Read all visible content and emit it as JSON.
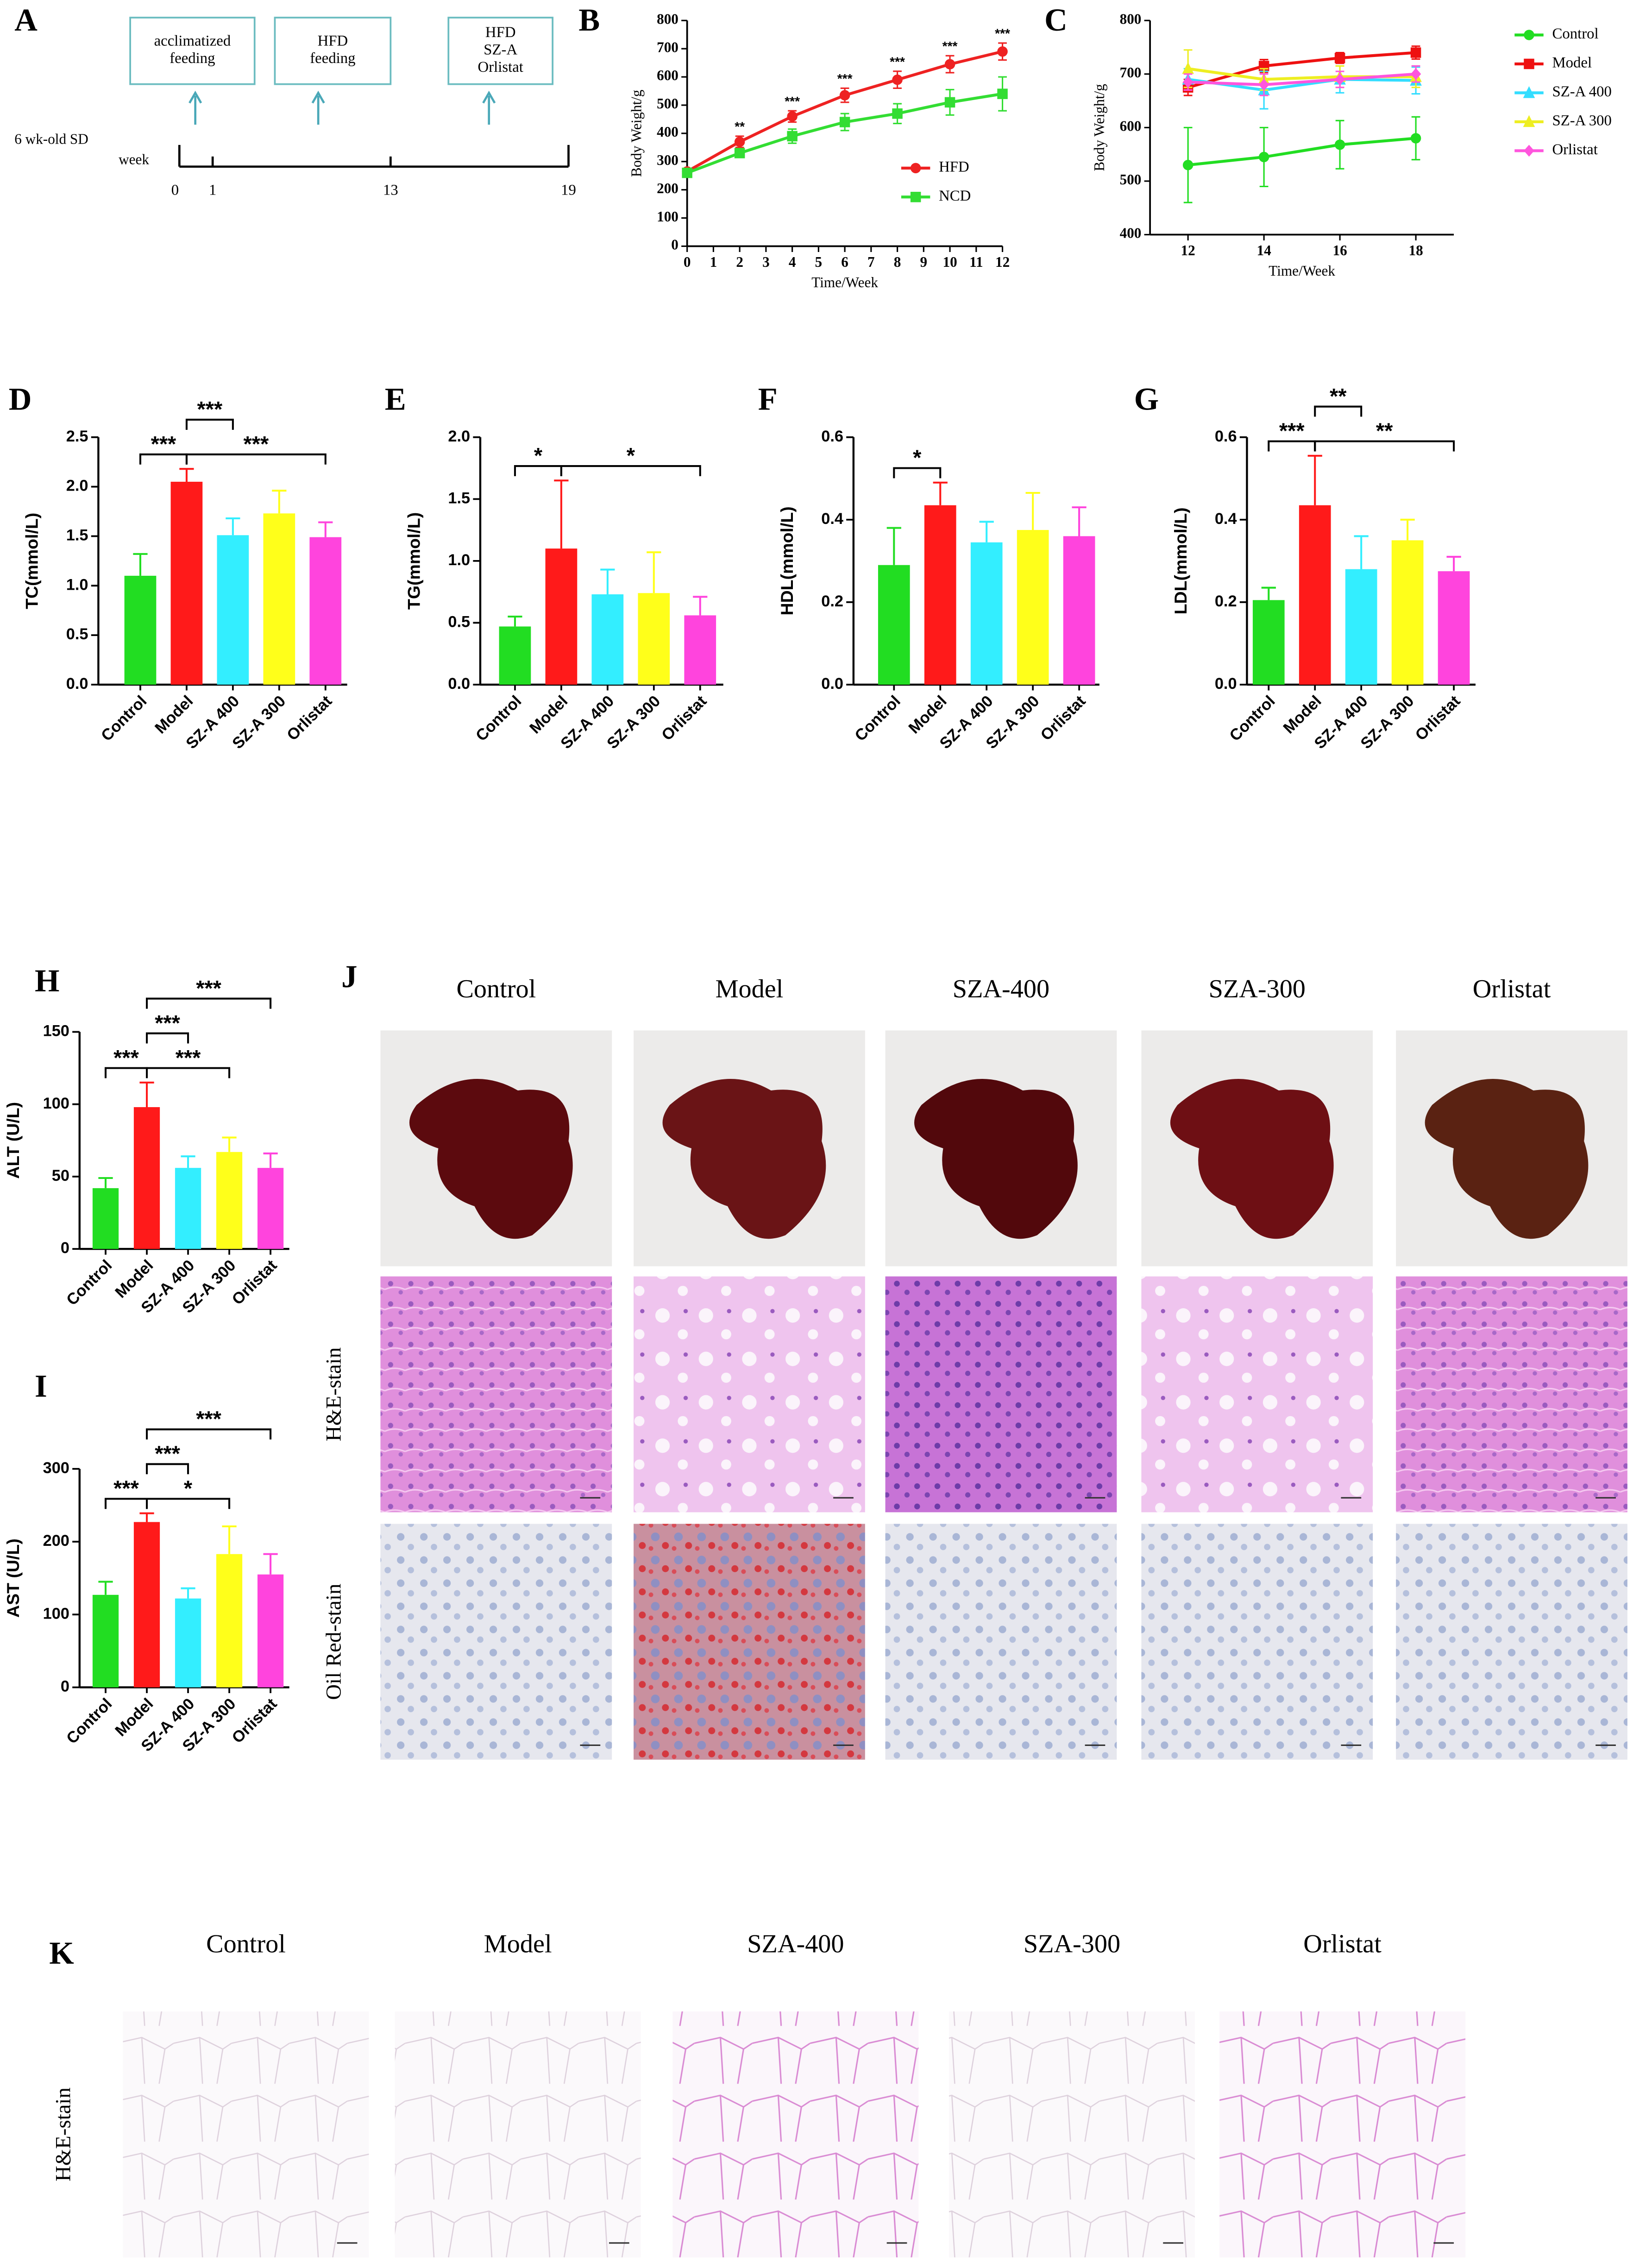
{
  "timeline": {
    "panel": "A",
    "subject": "6 wk-old SD",
    "axis_label": "week",
    "boxes": [
      [
        "acclimatized",
        "feeding"
      ],
      [
        "HFD",
        "feeding"
      ],
      [
        "HFD",
        "SZ-A",
        "Orlistat"
      ]
    ],
    "ticks": [
      0,
      1,
      13,
      19
    ]
  },
  "chart_data": [
    {
      "type": "line",
      "panel": "B",
      "ylabel": "Body Weight/g",
      "xlabel": "Time/Week",
      "x": [
        0,
        2,
        4,
        6,
        8,
        10,
        12
      ],
      "xlim": [
        0,
        12
      ],
      "xticks": [
        0,
        1,
        2,
        3,
        4,
        5,
        6,
        7,
        8,
        9,
        10,
        11,
        12
      ],
      "ylim": [
        0,
        800
      ],
      "yticks": [
        0,
        100,
        200,
        300,
        400,
        500,
        600,
        700,
        800
      ],
      "legend": "lower right",
      "series": [
        {
          "name": "HFD",
          "color": "#ee2222",
          "marker": "circle",
          "values": [
            265,
            370,
            460,
            535,
            590,
            645,
            690
          ],
          "errors": [
            10,
            20,
            20,
            25,
            30,
            30,
            30
          ]
        },
        {
          "name": "NCD",
          "color": "#33dd33",
          "marker": "square",
          "values": [
            260,
            330,
            390,
            440,
            470,
            510,
            540
          ],
          "errors": [
            10,
            15,
            25,
            30,
            35,
            45,
            60
          ]
        }
      ],
      "annotations": [
        {
          "x": 2,
          "text": "**"
        },
        {
          "x": 4,
          "text": "***"
        },
        {
          "x": 6,
          "text": "***"
        },
        {
          "x": 8,
          "text": "***"
        },
        {
          "x": 10,
          "text": "***"
        },
        {
          "x": 12,
          "text": "***"
        }
      ]
    },
    {
      "type": "line",
      "panel": "C",
      "ylabel": "Body Weight/g",
      "xlabel": "Time/Week",
      "x": [
        12,
        14,
        16,
        18
      ],
      "xlim": [
        11,
        19
      ],
      "xticks": [
        12,
        14,
        16,
        18
      ],
      "ylim": [
        400,
        800
      ],
      "yticks": [
        400,
        500,
        600,
        700,
        800
      ],
      "legend": "right",
      "series": [
        {
          "name": "Control",
          "color": "#22dd22",
          "marker": "circle",
          "values": [
            530,
            545,
            568,
            580
          ],
          "errors": [
            70,
            55,
            45,
            40
          ]
        },
        {
          "name": "Model",
          "color": "#ee1111",
          "marker": "square",
          "values": [
            675,
            715,
            730,
            740
          ],
          "errors": [
            15,
            12,
            10,
            12
          ]
        },
        {
          "name": "SZ-A 400",
          "color": "#33ddff",
          "marker": "triangle",
          "values": [
            690,
            670,
            690,
            688
          ],
          "errors": [
            20,
            35,
            25,
            25
          ]
        },
        {
          "name": "SZ-A 300",
          "color": "#eeee22",
          "marker": "triangle",
          "values": [
            710,
            690,
            695,
            695
          ],
          "errors": [
            35,
            20,
            20,
            20
          ]
        },
        {
          "name": "Orlistat",
          "color": "#ff55dd",
          "marker": "diamond",
          "values": [
            685,
            680,
            690,
            700
          ],
          "errors": [
            15,
            20,
            15,
            15
          ]
        }
      ]
    },
    {
      "type": "bar",
      "panel": "D",
      "ylabel": "TC(mmol/L)",
      "categories": [
        "Control",
        "Model",
        "SZ-A 400",
        "SZ-A 300",
        "Orlistat"
      ],
      "colors": [
        "#22dd22",
        "#ff1a1a",
        "#33eeff",
        "#ffff1a",
        "#ff44dd"
      ],
      "values": [
        1.1,
        2.05,
        1.51,
        1.73,
        1.49
      ],
      "errors": [
        0.22,
        0.13,
        0.17,
        0.23,
        0.15
      ],
      "ylim": [
        0,
        2.5
      ],
      "yticks": [
        {
          "value": 0,
          "label": "0.0"
        },
        0.5,
        {
          "value": 1,
          "label": "1.0"
        },
        1.5,
        {
          "value": 2,
          "label": "2.0"
        },
        2.5
      ],
      "brackets": [
        {
          "from": 0,
          "to": 1,
          "text": "***"
        },
        {
          "from": 1,
          "to": 4,
          "text": "***"
        },
        {
          "from": 1,
          "to": 2,
          "text": "***"
        }
      ]
    },
    {
      "type": "bar",
      "panel": "E",
      "ylabel": "TG(mmol/L)",
      "categories": [
        "Control",
        "Model",
        "SZ-A 400",
        "SZ-A 300",
        "Orlistat"
      ],
      "colors": [
        "#22dd22",
        "#ff1a1a",
        "#33eeff",
        "#ffff1a",
        "#ff44dd"
      ],
      "values": [
        0.47,
        1.1,
        0.73,
        0.74,
        0.56
      ],
      "errors": [
        0.08,
        0.55,
        0.2,
        0.33,
        0.15
      ],
      "ylim": [
        0,
        2
      ],
      "yticks": [
        {
          "value": 0,
          "label": "0.0"
        },
        0.5,
        {
          "value": 1,
          "label": "1.0"
        },
        1.5,
        {
          "value": 2,
          "label": "2.0"
        }
      ],
      "brackets": [
        {
          "from": 0,
          "to": 1,
          "text": "*"
        },
        {
          "from": 1,
          "to": 4,
          "text": "*"
        }
      ]
    },
    {
      "type": "bar",
      "panel": "F",
      "ylabel": "HDL(mmol/L)",
      "categories": [
        "Control",
        "Model",
        "SZ-A 400",
        "SZ-A 300",
        "Orlistat"
      ],
      "colors": [
        "#22dd22",
        "#ff1a1a",
        "#33eeff",
        "#ffff1a",
        "#ff44dd"
      ],
      "values": [
        0.29,
        0.435,
        0.345,
        0.375,
        0.36
      ],
      "errors": [
        0.09,
        0.055,
        0.05,
        0.09,
        0.07
      ],
      "ylim": [
        0,
        0.6
      ],
      "yticks": [
        {
          "value": 0,
          "label": "0.0"
        },
        0.2,
        0.4,
        0.6
      ],
      "brackets": [
        {
          "from": 0,
          "to": 1,
          "text": "*"
        }
      ]
    },
    {
      "type": "bar",
      "panel": "G",
      "ylabel": "LDL(mmol/L)",
      "categories": [
        "Control",
        "Model",
        "SZ-A 400",
        "SZ-A 300",
        "Orlistat"
      ],
      "colors": [
        "#22dd22",
        "#ff1a1a",
        "#33eeff",
        "#ffff1a",
        "#ff44dd"
      ],
      "values": [
        0.205,
        0.435,
        0.28,
        0.35,
        0.275
      ],
      "errors": [
        0.03,
        0.12,
        0.08,
        0.05,
        0.035
      ],
      "ylim": [
        0,
        0.6
      ],
      "yticks": [
        {
          "value": 0,
          "label": "0.0"
        },
        0.2,
        0.4,
        0.6
      ],
      "brackets": [
        {
          "from": 0,
          "to": 1,
          "text": "***"
        },
        {
          "from": 1,
          "to": 4,
          "text": "**"
        },
        {
          "from": 1,
          "to": 2,
          "text": "**"
        }
      ]
    },
    {
      "type": "bar",
      "panel": "H",
      "ylabel": "ALT (U/L)",
      "categories": [
        "Control",
        "Model",
        "SZ-A 400",
        "SZ-A 300",
        "Orlistat"
      ],
      "colors": [
        "#22dd22",
        "#ff1a1a",
        "#33eeff",
        "#ffff1a",
        "#ff44dd"
      ],
      "values": [
        42,
        98,
        56,
        67,
        56
      ],
      "errors": [
        7,
        17,
        8,
        10,
        10
      ],
      "ylim": [
        0,
        150
      ],
      "yticks": [
        0,
        50,
        100,
        150
      ],
      "brackets": [
        {
          "from": 0,
          "to": 1,
          "text": "***"
        },
        {
          "from": 1,
          "to": 3,
          "text": "***"
        },
        {
          "from": 1,
          "to": 2,
          "text": "***"
        },
        {
          "from": 1,
          "to": 4,
          "text": "***"
        }
      ]
    },
    {
      "type": "bar",
      "panel": "I",
      "ylabel": "AST (U/L)",
      "categories": [
        "Control",
        "Model",
        "SZ-A 400",
        "SZ-A 300",
        "Orlistat"
      ],
      "colors": [
        "#22dd22",
        "#ff1a1a",
        "#33eeff",
        "#ffff1a",
        "#ff44dd"
      ],
      "values": [
        127,
        227,
        122,
        183,
        155
      ],
      "errors": [
        18,
        12,
        14,
        38,
        28
      ],
      "ylim": [
        0,
        300
      ],
      "yticks": [
        0,
        100,
        200,
        300
      ],
      "brackets": [
        {
          "from": 0,
          "to": 1,
          "text": "***"
        },
        {
          "from": 1,
          "to": 3,
          "text": "*"
        },
        {
          "from": 1,
          "to": 2,
          "text": "***"
        },
        {
          "from": 1,
          "to": 4,
          "text": "***"
        }
      ]
    }
  ],
  "histology": [
    {
      "panel": "J",
      "columns": [
        "Control",
        "Model",
        "SZA-400",
        "SZA-300",
        "Orlistat"
      ],
      "rows": [
        null,
        "H&E-stain",
        "Oil Red-stain"
      ]
    },
    {
      "panel": "K",
      "columns": [
        "Control",
        "Model",
        "SZA-400",
        "SZA-300",
        "Orlistat"
      ],
      "rows": [
        "H&E-stain"
      ]
    }
  ]
}
